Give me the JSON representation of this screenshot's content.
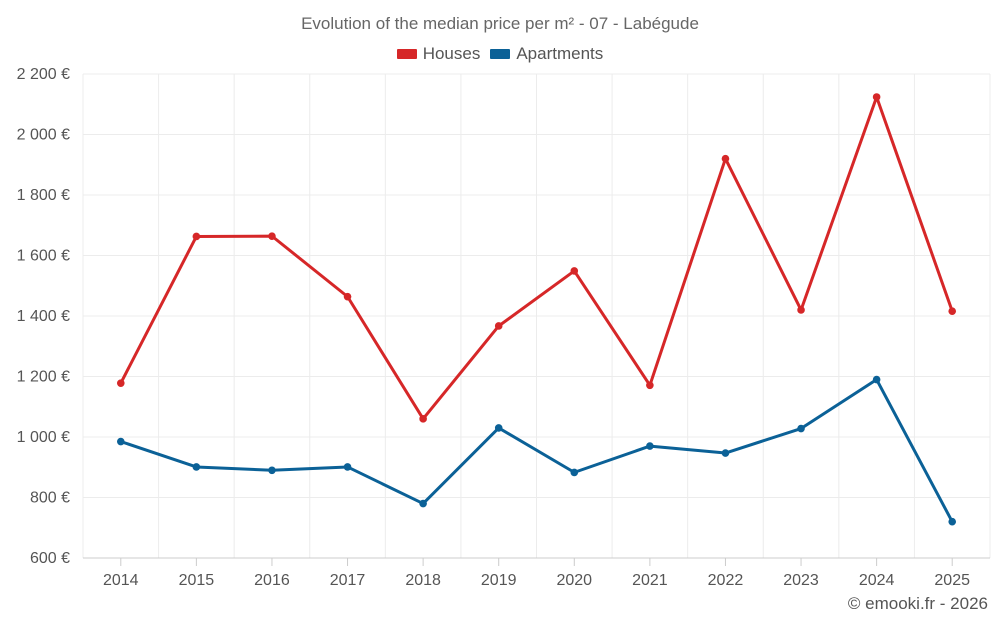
{
  "chart_data": {
    "type": "line",
    "title": "Evolution of the median price per m² - 07 - Labégude",
    "categories": [
      "2014",
      "2015",
      "2016",
      "2017",
      "2018",
      "2019",
      "2020",
      "2021",
      "2022",
      "2023",
      "2024",
      "2025"
    ],
    "series": [
      {
        "name": "Houses",
        "color": "#d62728",
        "values": [
          1178,
          1663,
          1664,
          1464,
          1060,
          1367,
          1549,
          1171,
          1920,
          1420,
          2124,
          1416
        ]
      },
      {
        "name": "Apartments",
        "color": "#0b6197",
        "values": [
          985,
          901,
          890,
          901,
          780,
          1030,
          883,
          970,
          947,
          1028,
          1190,
          720
        ]
      }
    ],
    "ylim": [
      600,
      2200
    ],
    "yticks": [
      600,
      800,
      1000,
      1200,
      1400,
      1600,
      1800,
      2000,
      2200
    ],
    "ytick_labels": [
      "600 €",
      "800 €",
      "1 000 €",
      "1 200 €",
      "1 400 €",
      "1 600 €",
      "1 800 €",
      "2 000 €",
      "2 200 €"
    ],
    "xlabel": "",
    "ylabel": "",
    "grid": true,
    "legend_position": "top-center"
  },
  "credit": "© emooki.fr - 2026"
}
